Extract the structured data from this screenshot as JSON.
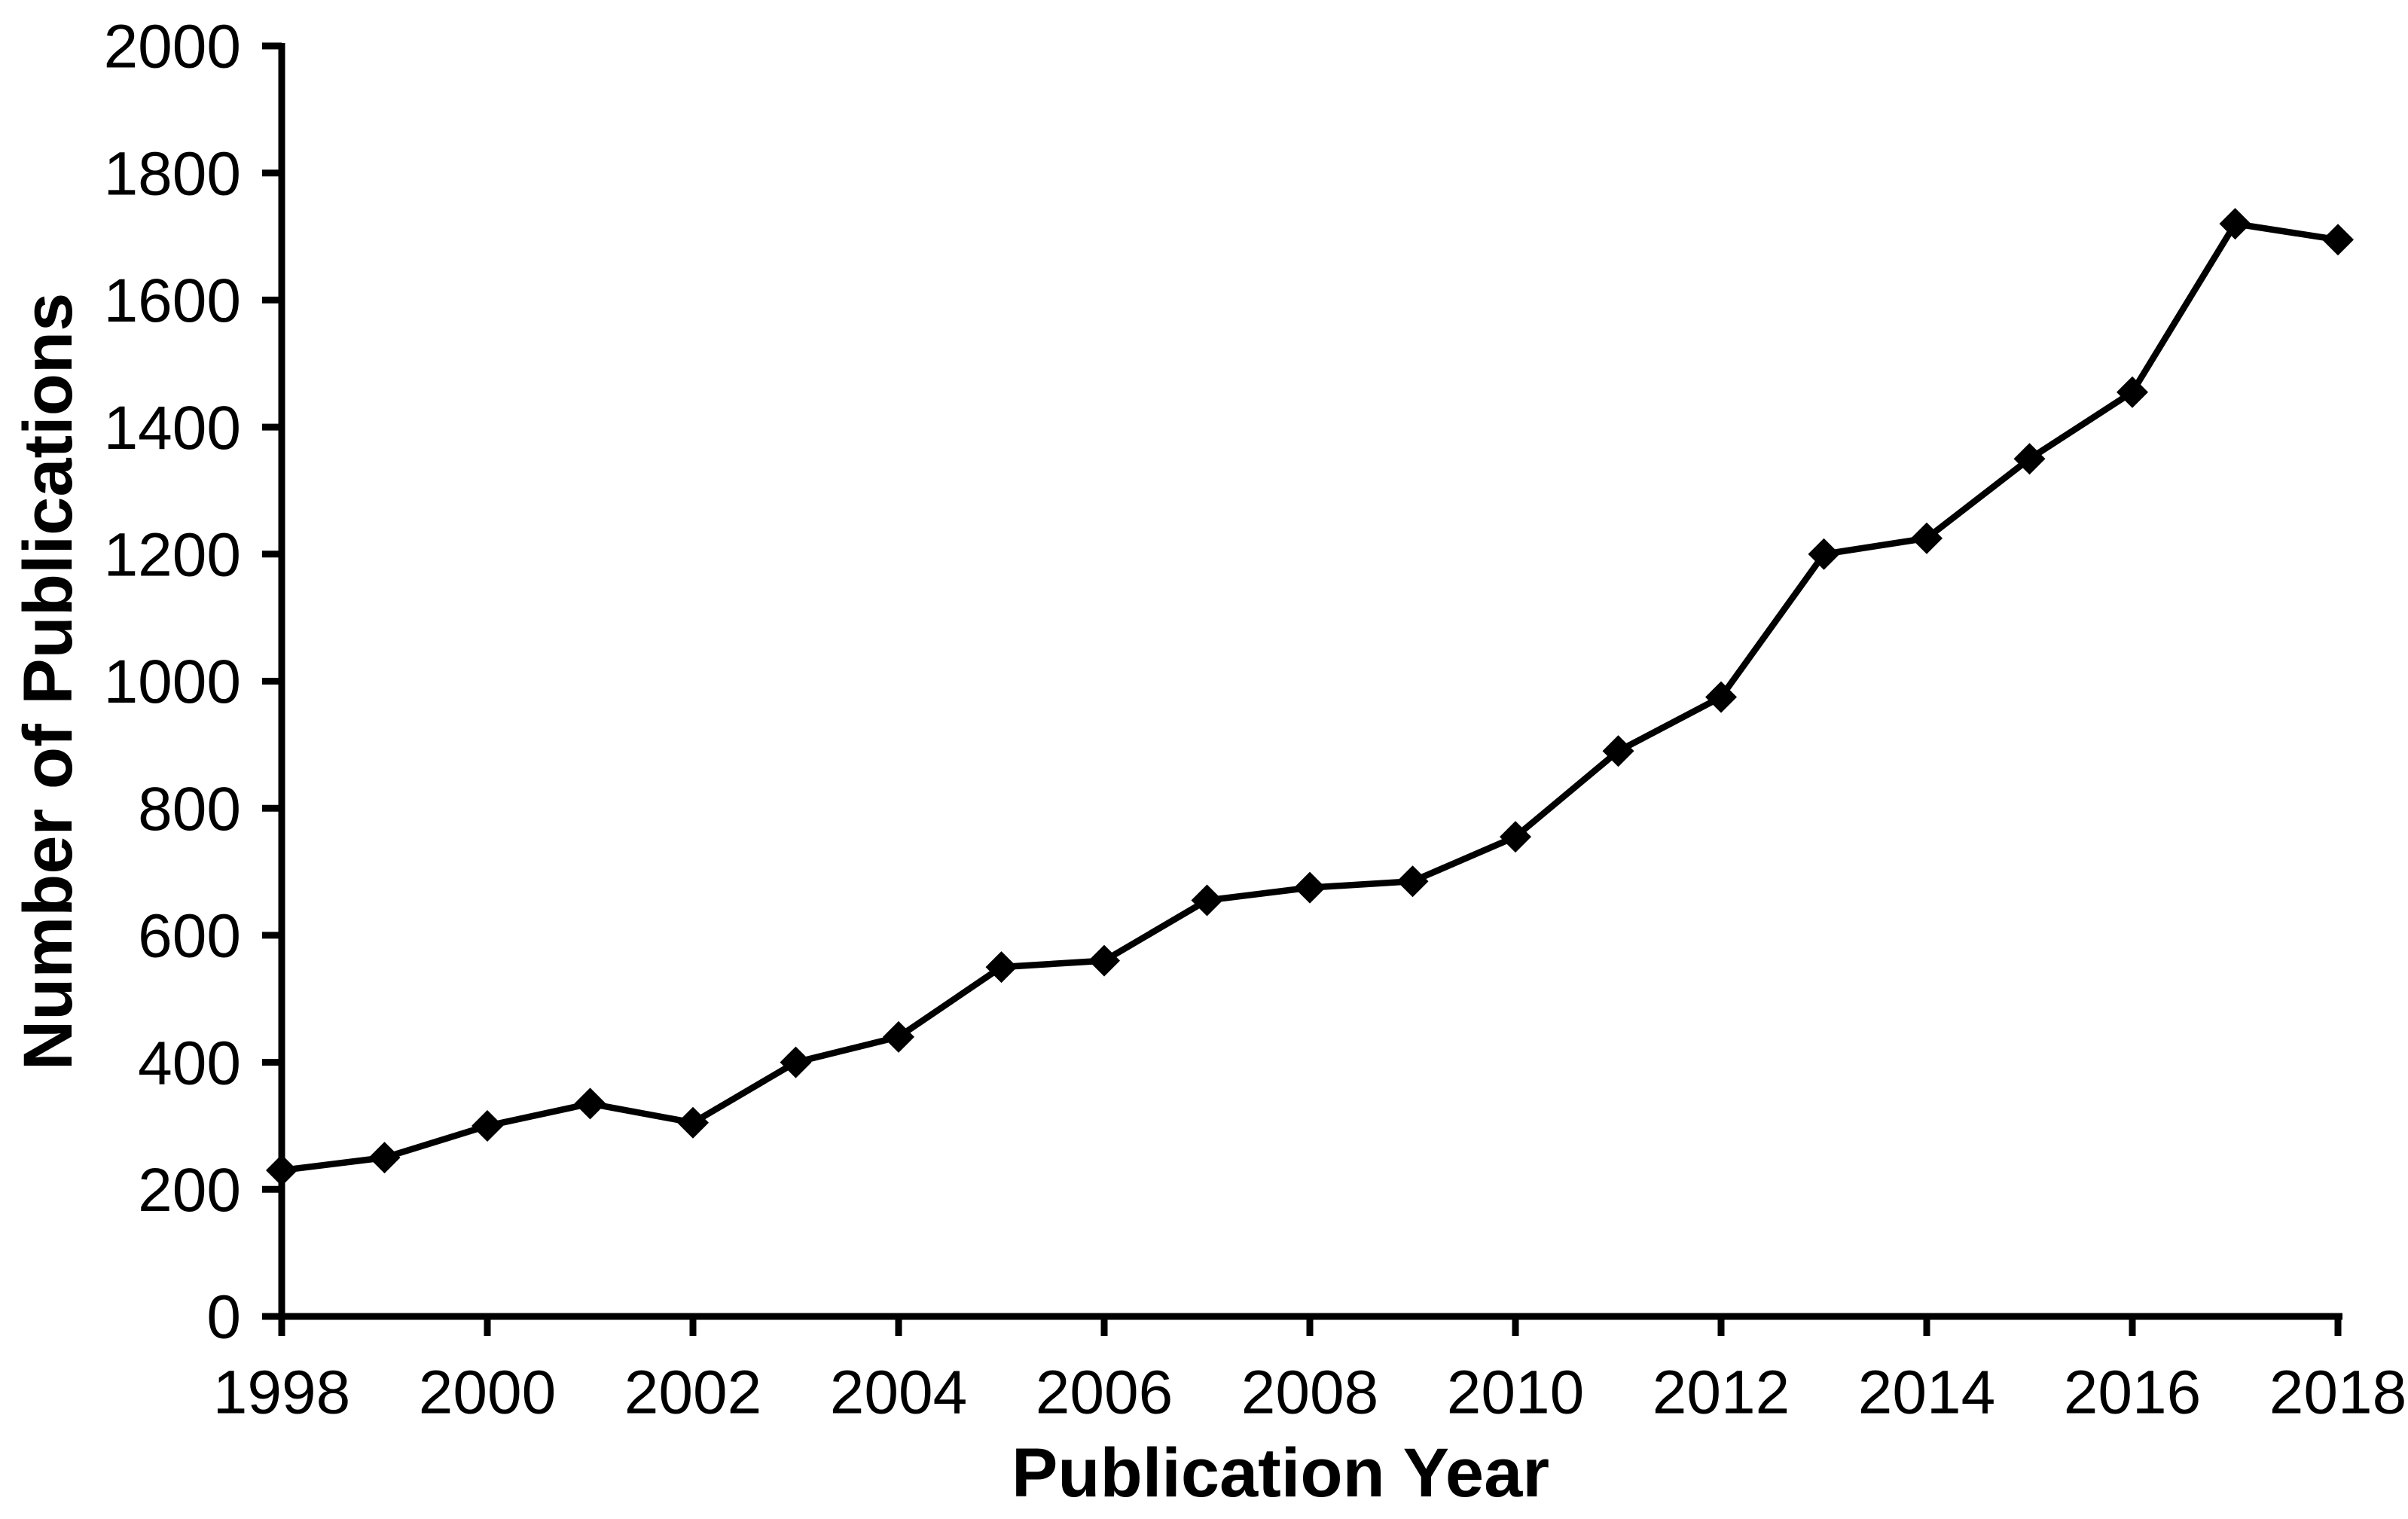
{
  "figure": {
    "background_color": "#ffffff",
    "ink_color": "#000000"
  },
  "chart_data": {
    "type": "line",
    "title": "",
    "xlabel": "Publication Year",
    "ylabel": "Number of Publications",
    "series": [
      {
        "name": "Number of Publications",
        "x": [
          1998,
          1999,
          2000,
          2001,
          2002,
          2003,
          2004,
          2005,
          2006,
          2007,
          2008,
          2009,
          2010,
          2011,
          2012,
          2013,
          2014,
          2015,
          2016,
          2017,
          2018
        ],
        "values": [
          230,
          250,
          300,
          335,
          305,
          400,
          440,
          550,
          560,
          655,
          675,
          685,
          755,
          890,
          975,
          1200,
          1225,
          1350,
          1455,
          1720,
          1695
        ],
        "line_color": "#000000",
        "marker": "diamond",
        "marker_color": "#000000"
      }
    ],
    "xlim": [
      1998,
      2018
    ],
    "ylim": [
      0,
      2000
    ],
    "x_tick_labels": [
      "1998",
      "2000",
      "2002",
      "2004",
      "2006",
      "2008",
      "2010",
      "2012",
      "2014",
      "2016",
      "2018"
    ],
    "x_ticks": [
      1998,
      2000,
      2002,
      2004,
      2006,
      2008,
      2010,
      2012,
      2014,
      2016,
      2018
    ],
    "y_tick_labels": [
      "0",
      "200",
      "400",
      "600",
      "800",
      "1000",
      "1200",
      "1400",
      "1600",
      "1800",
      "2000"
    ],
    "y_ticks": [
      0,
      200,
      400,
      600,
      800,
      1000,
      1200,
      1400,
      1600,
      1800,
      2000
    ],
    "grid": false,
    "legend_position": "none"
  }
}
